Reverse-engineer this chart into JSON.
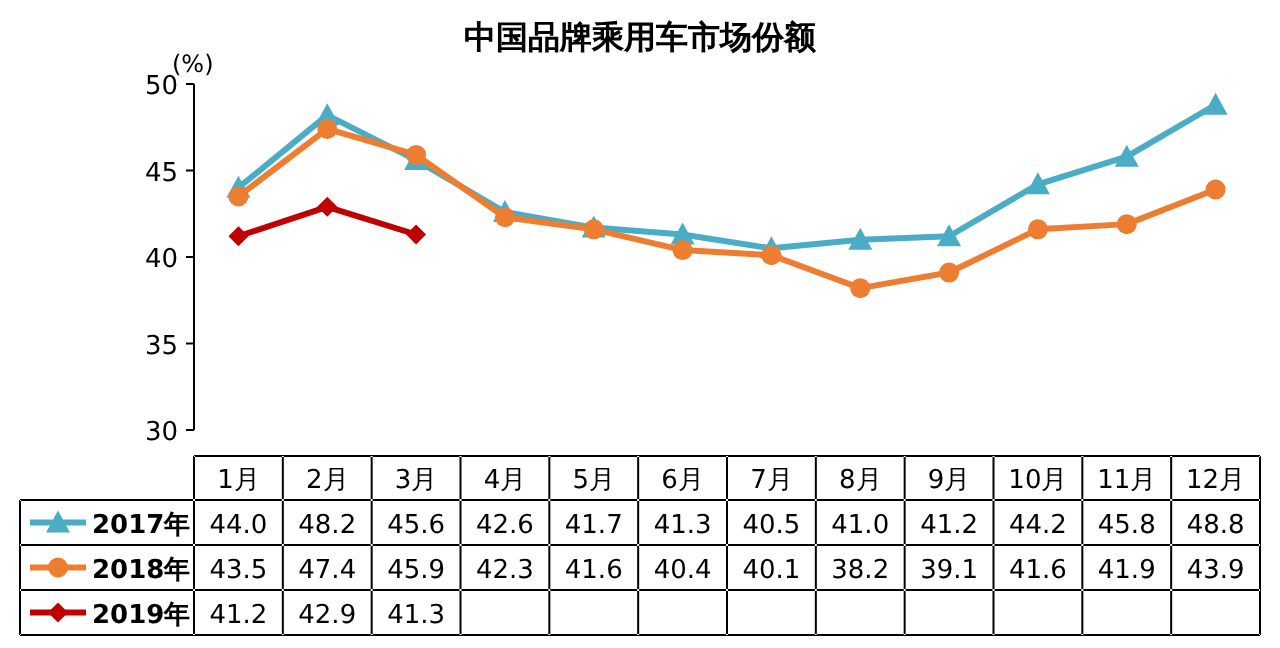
{
  "chart_data": {
    "type": "line",
    "title": "中国品牌乘用车市场份额",
    "ylabel": "(%)",
    "categories": [
      "1月",
      "2月",
      "3月",
      "4月",
      "5月",
      "6月",
      "7月",
      "8月",
      "9月",
      "10月",
      "11月",
      "12月"
    ],
    "series": [
      {
        "name": "2017年",
        "color": "#4bacc6",
        "marker": "triangle",
        "values": [
          44.0,
          48.2,
          45.6,
          42.6,
          41.7,
          41.3,
          40.5,
          41.0,
          41.2,
          44.2,
          45.8,
          48.8
        ],
        "value_labels": [
          "44.0",
          "48.2",
          "45.6",
          "42.6",
          "41.7",
          "41.3",
          "40.5",
          "41.0",
          "41.2",
          "44.2",
          "45.8",
          "48.8"
        ]
      },
      {
        "name": "2018年",
        "color": "#ed7d31",
        "marker": "circle",
        "values": [
          43.5,
          47.4,
          45.9,
          42.3,
          41.6,
          40.4,
          40.1,
          38.2,
          39.1,
          41.6,
          41.9,
          43.9
        ],
        "value_labels": [
          "43.5",
          "47.4",
          "45.9",
          "42.3",
          "41.6",
          "40.4",
          "40.1",
          "38.2",
          "39.1",
          "41.6",
          "41.9",
          "43.9"
        ]
      },
      {
        "name": "2019年",
        "color": "#c00000",
        "marker": "diamond",
        "values": [
          41.2,
          42.9,
          41.3,
          null,
          null,
          null,
          null,
          null,
          null,
          null,
          null,
          null
        ],
        "value_labels": [
          "41.2",
          "42.9",
          "41.3",
          null,
          null,
          null,
          null,
          null,
          null,
          null,
          null,
          null
        ]
      }
    ],
    "ylim": [
      30,
      50
    ],
    "yticks": [
      30,
      35,
      40,
      45,
      50
    ],
    "legend": "bottom"
  }
}
